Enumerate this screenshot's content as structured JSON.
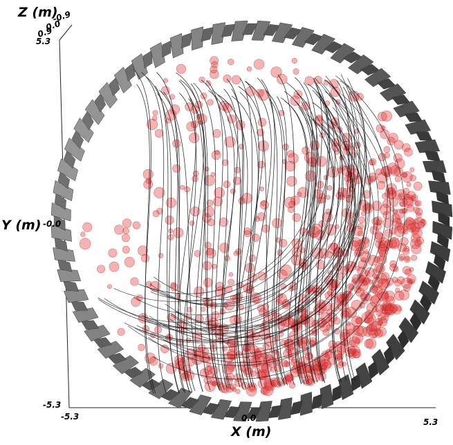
{
  "axes": {
    "x": {
      "title": "X (m)",
      "ticks": [
        "-5.3",
        "0.0",
        "5.3"
      ]
    },
    "y": {
      "title": "Y (m)",
      "ticks": [
        "5.3",
        "-0.0",
        "-5.3"
      ]
    },
    "z": {
      "title": "Z (m)",
      "ticks": [
        "-0.9",
        "0.0",
        "0.9"
      ]
    }
  },
  "colors": {
    "background": "#ffffff",
    "drum_light": "#9a9a9a",
    "drum_dark": "#4a4a4a",
    "particle_fill": "#e23a3a",
    "particle_stroke": "#b01818",
    "streamline": "#111111"
  },
  "scene": {
    "particle_count": 900,
    "streamline_count": 55
  }
}
